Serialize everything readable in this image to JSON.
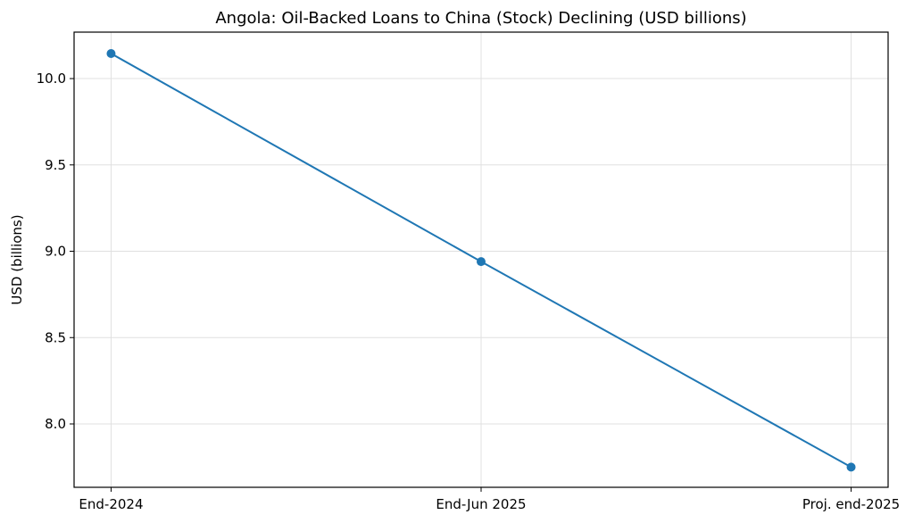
{
  "chart_data": {
    "type": "line",
    "title": "Angola: Oil-Backed Loans to China (Stock) Declining (USD billions)",
    "y_label": "USD (billions)",
    "categories": [
      "End-2024",
      "End-Jun 2025",
      "Proj. end-2025"
    ],
    "series": [
      {
        "name": "Oil-backed loans stock",
        "color": "#1f77b4",
        "values": [
          10.145,
          8.94,
          7.75
        ]
      }
    ],
    "ylim": [
      7.633,
      10.269
    ],
    "yticks": [
      {
        "value": 8,
        "label": "8.0"
      },
      8.5,
      {
        "value": 9,
        "label": "9.0"
      },
      9.5,
      {
        "value": 10,
        "label": "10.0"
      }
    ],
    "grid": true
  }
}
